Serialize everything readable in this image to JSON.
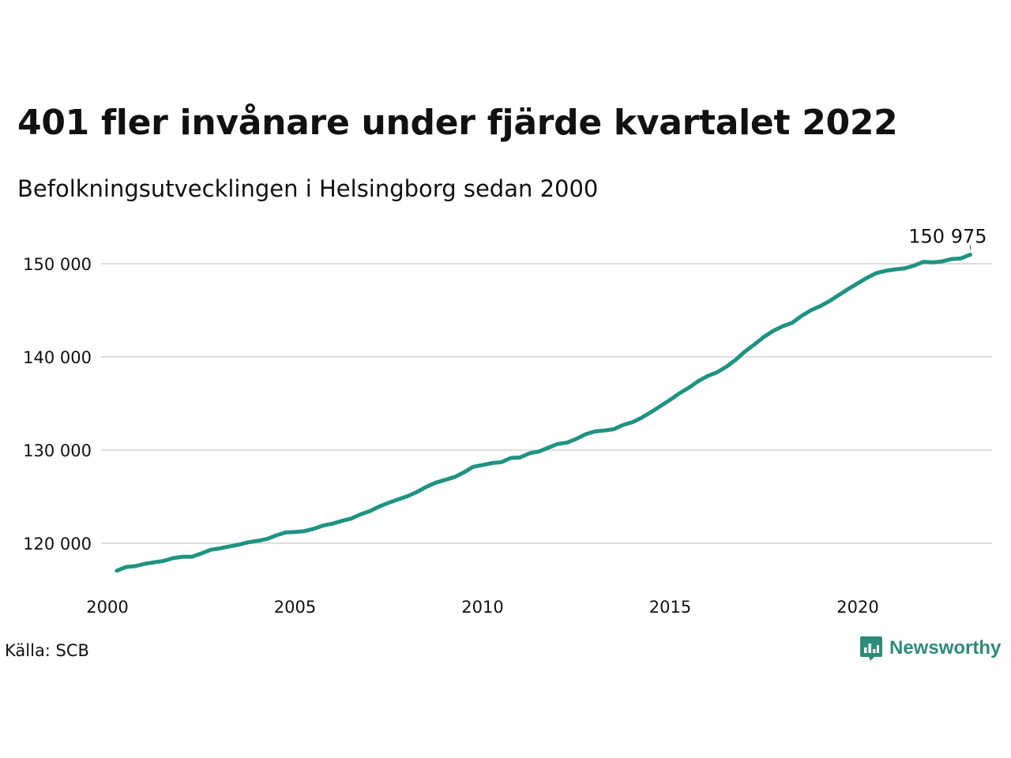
{
  "title": "401 fler invånare under fjärde kvartalet 2022",
  "subtitle": "Befolkningsutvecklingen i Helsingborg sedan 2000",
  "source": "Källa: SCB",
  "brand": "Newsworthy",
  "colors": {
    "line": "#1f9381",
    "grid": "#dddddd",
    "brand": "#2e8b7a"
  },
  "chart_data": {
    "type": "line",
    "title": "401 fler invånare under fjärde kvartalet 2022",
    "subtitle": "Befolkningsutvecklingen i Helsingborg sedan 2000",
    "xlabel": "",
    "ylabel": "",
    "xlim": [
      2000,
      2023.5
    ],
    "ylim": [
      115000,
      153000
    ],
    "x_ticks": [
      2000,
      2005,
      2010,
      2015,
      2020
    ],
    "y_ticks": [
      120000,
      130000,
      140000,
      150000
    ],
    "y_tick_labels": [
      "120 000",
      "130 000",
      "140 000",
      "150 000"
    ],
    "grid": true,
    "end_label": "150 975",
    "series": [
      {
        "x": [
          2000.25,
          2000.5,
          2000.75,
          2001.0,
          2001.25,
          2001.5,
          2001.75,
          2002.0,
          2002.25,
          2002.5,
          2002.75,
          2003.0,
          2003.25,
          2003.5,
          2003.75,
          2004.0,
          2004.25,
          2004.5,
          2004.75,
          2005.0,
          2005.25,
          2005.5,
          2005.75,
          2006.0,
          2006.25,
          2006.5,
          2006.75,
          2007.0,
          2007.25,
          2007.5,
          2007.75,
          2008.0,
          2008.25,
          2008.5,
          2008.75,
          2009.0,
          2009.25,
          2009.5,
          2009.75,
          2010.0,
          2010.25,
          2010.5,
          2010.75,
          2011.0,
          2011.25,
          2011.5,
          2011.75,
          2012.0,
          2012.25,
          2012.5,
          2012.75,
          2013.0,
          2013.25,
          2013.5,
          2013.75,
          2014.0,
          2014.25,
          2014.5,
          2014.75,
          2015.0,
          2015.25,
          2015.5,
          2015.75,
          2016.0,
          2016.25,
          2016.5,
          2016.75,
          2017.0,
          2017.25,
          2017.5,
          2017.75,
          2018.0,
          2018.25,
          2018.5,
          2018.75,
          2019.0,
          2019.25,
          2019.5,
          2019.75,
          2020.0,
          2020.25,
          2020.5,
          2020.75,
          2021.0,
          2021.25,
          2021.5,
          2021.75,
          2022.0,
          2022.25,
          2022.5,
          2022.75,
          2023.0
        ],
        "values": [
          117050,
          117450,
          117550,
          117800,
          117950,
          118100,
          118400,
          118550,
          118550,
          118900,
          119300,
          119450,
          119650,
          119850,
          120100,
          120250,
          120450,
          120850,
          121150,
          121200,
          121300,
          121550,
          121900,
          122100,
          122400,
          122650,
          123100,
          123450,
          123950,
          124350,
          124700,
          125050,
          125500,
          126050,
          126500,
          126800,
          127100,
          127600,
          128200,
          128400,
          128600,
          128700,
          129150,
          129200,
          129650,
          129850,
          130250,
          130650,
          130800,
          131200,
          131700,
          132000,
          132100,
          132250,
          132700,
          133000,
          133500,
          134100,
          134750,
          135400,
          136100,
          136700,
          137400,
          137950,
          138350,
          138950,
          139700,
          140600,
          141350,
          142150,
          142800,
          143300,
          143650,
          144400,
          145000,
          145450,
          146000,
          146650,
          147300,
          147900,
          148500,
          149000,
          149250,
          149400,
          149500,
          149800,
          150200,
          150150,
          150250,
          150500,
          150574,
          150975
        ]
      }
    ]
  }
}
